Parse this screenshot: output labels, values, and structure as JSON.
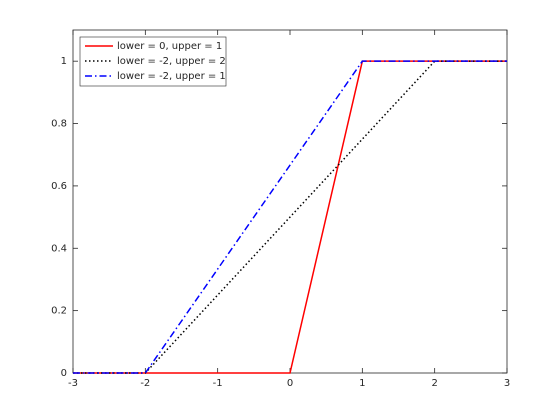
{
  "chart_data": {
    "type": "line",
    "series": [
      {
        "name": "lower = 0, upper = 1",
        "color": "#ff0000",
        "dash": "solid",
        "x": [
          -3,
          0,
          1,
          3
        ],
        "values": [
          0,
          0,
          1,
          1
        ]
      },
      {
        "name": "lower = -2, upper = 2",
        "color": "#000000",
        "dash": "dotted",
        "x": [
          -3,
          -2,
          2,
          3
        ],
        "values": [
          0,
          0,
          1,
          1
        ]
      },
      {
        "name": "lower = -2, upper = 1",
        "color": "#0000ff",
        "dash": "dashdot",
        "x": [
          -3,
          -2,
          1,
          3
        ],
        "values": [
          0,
          0,
          1,
          1
        ]
      }
    ],
    "xlim": [
      -3,
      3
    ],
    "xticks": [
      -3,
      -2,
      -1,
      0,
      1,
      2,
      3
    ],
    "ylim": [
      0,
      1.1
    ],
    "yticks": [
      0,
      0.2,
      0.4,
      0.6,
      0.8,
      1
    ],
    "grid": false,
    "legend": "upper-left"
  }
}
